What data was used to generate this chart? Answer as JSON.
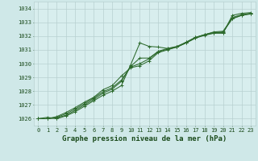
{
  "title": "Graphe pression niveau de la mer (hPa)",
  "fig_bg_color": "#cfe8e8",
  "plot_bg_color": "#d8eeee",
  "line_color": "#2d6a2d",
  "grid_color": "#b8d0d0",
  "text_color": "#1a4a1a",
  "hours": [
    0,
    1,
    2,
    3,
    4,
    5,
    6,
    7,
    8,
    9,
    10,
    11,
    12,
    13,
    14,
    15,
    16,
    17,
    18,
    19,
    20,
    21,
    22,
    23
  ],
  "line1": [
    1026.0,
    1026.1,
    1026.0,
    1026.2,
    1026.5,
    1026.9,
    1027.3,
    1027.7,
    1028.0,
    1028.4,
    1029.9,
    1031.5,
    1031.25,
    1031.2,
    1031.1,
    1031.2,
    1031.5,
    1031.85,
    1032.05,
    1032.2,
    1032.2,
    1033.5,
    1033.65,
    1033.7
  ],
  "line2": [
    1026.0,
    1026.0,
    1026.05,
    1026.25,
    1026.6,
    1027.0,
    1027.4,
    1027.85,
    1028.15,
    1028.7,
    1029.8,
    1030.4,
    1030.4,
    1030.9,
    1031.1,
    1031.25,
    1031.55,
    1031.9,
    1032.1,
    1032.25,
    1032.25,
    1033.35,
    1033.55,
    1033.65
  ],
  "line3": [
    1026.0,
    1026.0,
    1026.1,
    1026.35,
    1026.7,
    1027.1,
    1027.5,
    1027.95,
    1028.25,
    1028.8,
    1029.75,
    1030.0,
    1030.35,
    1030.85,
    1031.05,
    1031.2,
    1031.5,
    1031.85,
    1032.1,
    1032.25,
    1032.3,
    1033.25,
    1033.5,
    1033.6
  ],
  "line4": [
    1026.0,
    1026.0,
    1026.15,
    1026.45,
    1026.8,
    1027.2,
    1027.55,
    1028.1,
    1028.4,
    1029.1,
    1029.7,
    1029.85,
    1030.2,
    1030.8,
    1031.0,
    1031.2,
    1031.55,
    1031.9,
    1032.1,
    1032.3,
    1032.35,
    1033.3,
    1033.5,
    1033.65
  ],
  "ylim": [
    1025.5,
    1034.5
  ],
  "yticks": [
    1026,
    1027,
    1028,
    1029,
    1030,
    1031,
    1032,
    1033,
    1034
  ],
  "xticks": [
    0,
    1,
    2,
    3,
    4,
    5,
    6,
    7,
    8,
    9,
    10,
    11,
    12,
    13,
    14,
    15,
    16,
    17,
    18,
    19,
    20,
    21,
    22,
    23
  ],
  "title_fontsize": 6.5,
  "tick_fontsize": 5.0
}
